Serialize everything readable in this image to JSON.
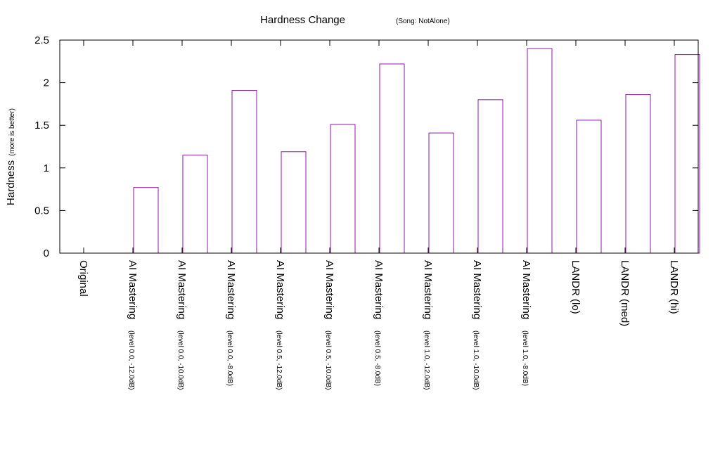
{
  "chart_data": {
    "type": "bar",
    "title": "Hardness Change",
    "subtitle": "(Song: NotAlone)",
    "ylabel": "Hardness",
    "ylabel_note": "(more is better)",
    "xlabel": "",
    "ylim": [
      0,
      2.5
    ],
    "yticks": [
      {
        "value": 0,
        "label": "0"
      },
      {
        "value": 0.5,
        "label": "0.5"
      },
      {
        "value": 1,
        "label": "1"
      },
      {
        "value": 1.5,
        "label": "1.5"
      },
      {
        "value": 2,
        "label": "2"
      },
      {
        "value": 2.5,
        "label": "2.5"
      }
    ],
    "grid": false,
    "legend": "none",
    "bar_color": "#8b1aa8",
    "categories": [
      {
        "label": "Original",
        "note": ""
      },
      {
        "label": "AI Mastering",
        "note": "(level 0.0, -12.0dB)"
      },
      {
        "label": "AI Mastering",
        "note": "(level 0.0, -10.0dB)"
      },
      {
        "label": "AI Mastering",
        "note": "(level 0.0, -8.0dB)"
      },
      {
        "label": "AI Mastering",
        "note": "(level 0.5, -12.0dB)"
      },
      {
        "label": "AI Mastering",
        "note": "(level 0.5, -10.0dB)"
      },
      {
        "label": "AI Mastering",
        "note": "(level 0.5, -8.0dB)"
      },
      {
        "label": "AI Mastering",
        "note": "(level 1.0, -12.0dB)"
      },
      {
        "label": "AI Mastering",
        "note": "(level 1.0, -10.0dB)"
      },
      {
        "label": "AI Mastering",
        "note": "(level 1.0, -8.0dB)"
      },
      {
        "label": "LANDR (lo)",
        "note": ""
      },
      {
        "label": "LANDR (med)",
        "note": ""
      },
      {
        "label": "LANDR (hi)",
        "note": ""
      }
    ],
    "values": [
      0,
      0.77,
      1.15,
      1.91,
      1.19,
      1.51,
      2.22,
      1.41,
      1.8,
      2.4,
      1.56,
      1.86,
      2.33
    ]
  }
}
